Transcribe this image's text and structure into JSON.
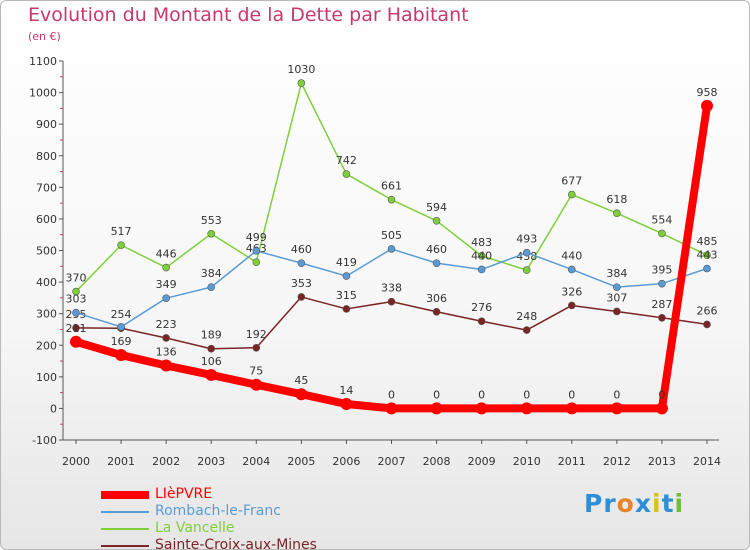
{
  "title": "Evolution du Montant de la Dette par Habitant",
  "subtitle": "(en €)",
  "logo": {
    "text": "Proxiti",
    "colors": [
      "#2f8fd6",
      "#2f8fd6",
      "#e8832a",
      "#2f8fd6",
      "#d8c21a",
      "#2f8fd6",
      "#6bbf3a"
    ]
  },
  "chart_data": {
    "type": "line",
    "title": "Evolution du Montant de la Dette par Habitant",
    "ylabel": "(en €)",
    "ylim": [
      -100,
      1100
    ],
    "y_ticks": [
      -100,
      0,
      100,
      200,
      300,
      400,
      500,
      600,
      700,
      800,
      900,
      1000,
      1100
    ],
    "categories": [
      "2000",
      "2001",
      "2002",
      "2003",
      "2004",
      "2005",
      "2006",
      "2007",
      "2008",
      "2009",
      "2010",
      "2011",
      "2012",
      "2013",
      "2014"
    ],
    "grid": false,
    "legend_position": "bottom-left",
    "series": [
      {
        "name": "Sainte-Croix-aux-Mines",
        "color": "#7a2424",
        "values": [
          255,
          254,
          223,
          189,
          192,
          353,
          315,
          338,
          306,
          276,
          248,
          326,
          307,
          287,
          266
        ],
        "labels": [
          "255",
          "254",
          "223",
          "189",
          "192",
          "353",
          "315",
          "338",
          "306",
          "276",
          "248",
          "326",
          "307",
          "287",
          "266"
        ]
      },
      {
        "name": "La Vancelle",
        "color": "#7fcf3a",
        "values": [
          370,
          517,
          446,
          553,
          463,
          1030,
          742,
          661,
          594,
          483,
          438,
          677,
          618,
          554,
          485
        ],
        "labels": [
          "370",
          "517",
          "446",
          "553",
          "463",
          "1030",
          "742",
          "661",
          "594",
          "483",
          "438",
          "677",
          "618",
          "554",
          "485"
        ]
      },
      {
        "name": "Rombach-le-Franc",
        "color": "#5a9bd5",
        "values": [
          303,
          258,
          349,
          384,
          499,
          460,
          419,
          505,
          460,
          440,
          493,
          440,
          384,
          395,
          443
        ],
        "labels": [
          "303",
          "",
          "349",
          "384",
          "499",
          "460",
          "419",
          "505",
          "460",
          "440",
          "493",
          "440",
          "384",
          "395",
          "443"
        ]
      },
      {
        "name": "LIèPVRE",
        "color": "#ff0000",
        "values": [
          211,
          169,
          136,
          106,
          75,
          45,
          14,
          0,
          0,
          0,
          0,
          0,
          0,
          0,
          958
        ],
        "labels": [
          "211",
          "169",
          "136",
          "106",
          "75",
          "45",
          "14",
          "0",
          "0",
          "0",
          "0",
          "0",
          "0",
          "0",
          "958"
        ]
      }
    ]
  }
}
